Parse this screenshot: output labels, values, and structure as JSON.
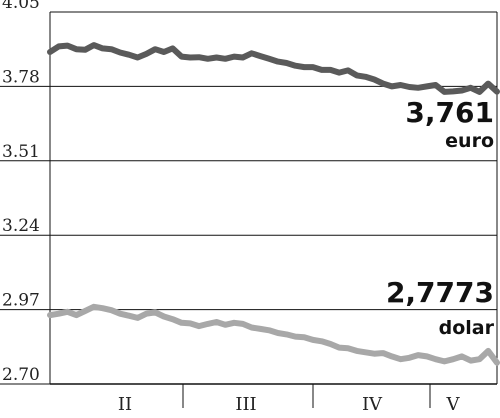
{
  "chart_data": {
    "type": "line",
    "title": "",
    "xlabel": "",
    "ylabel": "",
    "ylim": [
      2.7,
      4.05
    ],
    "yticks": [
      "4.05",
      "3.78",
      "3.51",
      "3.24",
      "2.97",
      "2.70"
    ],
    "ytick_values": [
      4.05,
      3.78,
      3.51,
      3.24,
      2.97,
      2.7
    ],
    "x_period_labels": [
      "II",
      "III",
      "IV",
      "V"
    ],
    "grid": true,
    "series": [
      {
        "name": "euro",
        "end_label": "3,761",
        "color": "#5a5a5a",
        "values": [
          3.905,
          3.925,
          3.928,
          3.915,
          3.913,
          3.93,
          3.918,
          3.915,
          3.903,
          3.895,
          3.885,
          3.898,
          3.915,
          3.905,
          3.918,
          3.888,
          3.885,
          3.886,
          3.88,
          3.885,
          3.88,
          3.888,
          3.885,
          3.9,
          3.89,
          3.88,
          3.87,
          3.865,
          3.855,
          3.85,
          3.85,
          3.84,
          3.84,
          3.83,
          3.838,
          3.82,
          3.815,
          3.805,
          3.79,
          3.78,
          3.785,
          3.778,
          3.775,
          3.78,
          3.785,
          3.76,
          3.762,
          3.765,
          3.775,
          3.76,
          3.79,
          3.761
        ]
      },
      {
        "name": "dolar",
        "end_label": "2,7773",
        "color": "#a8a8a8",
        "values": [
          2.95,
          2.955,
          2.962,
          2.95,
          2.965,
          2.98,
          2.975,
          2.968,
          2.955,
          2.948,
          2.94,
          2.955,
          2.96,
          2.945,
          2.935,
          2.922,
          2.92,
          2.91,
          2.918,
          2.925,
          2.915,
          2.922,
          2.918,
          2.905,
          2.9,
          2.895,
          2.885,
          2.88,
          2.872,
          2.87,
          2.86,
          2.855,
          2.845,
          2.832,
          2.83,
          2.82,
          2.815,
          2.81,
          2.812,
          2.8,
          2.79,
          2.795,
          2.805,
          2.8,
          2.79,
          2.782,
          2.79,
          2.8,
          2.785,
          2.79,
          2.82,
          2.7773
        ]
      }
    ]
  }
}
